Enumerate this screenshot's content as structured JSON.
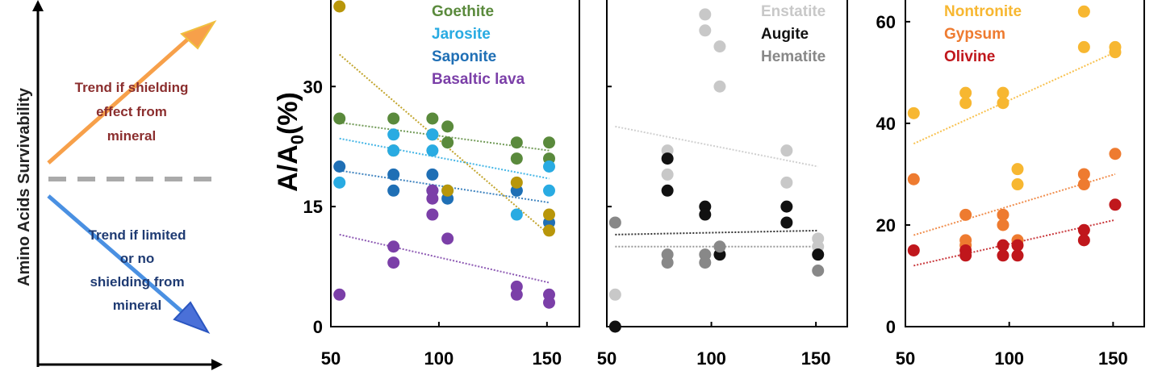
{
  "concept": {
    "y_axis_label": "Amino Acids Survivability",
    "up_label_lines": [
      "Trend if shielding",
      "effect from",
      "mineral"
    ],
    "down_label_lines": [
      "Trend if limited",
      "or no",
      "shielding from",
      "mineral"
    ],
    "colors": {
      "up": "#f7a04a",
      "down": "#4a90e2",
      "baseline": "#aaaaaa",
      "up_text": "#8b2e2e",
      "down_text": "#1f3b73"
    }
  },
  "shared_y_label": {
    "main": "A/A",
    "sub": "0",
    "unit": "(%)"
  },
  "chart_data": [
    {
      "type": "scatter",
      "title": "",
      "xlabel": "",
      "ylabel": "A/A0(%)",
      "xlim": [
        50,
        165
      ],
      "ylim": [
        0,
        40
      ],
      "x_ticks": [
        50,
        100,
        150
      ],
      "y_ticks": [
        0,
        15,
        30
      ],
      "series": [
        {
          "name": "Goethite",
          "color": "#5a8a3c",
          "points": [
            [
              54,
              26
            ],
            [
              79,
              26
            ],
            [
              79,
              22
            ],
            [
              97,
              26
            ],
            [
              97,
              24
            ],
            [
              104,
              25
            ],
            [
              104,
              23
            ],
            [
              136,
              23
            ],
            [
              136,
              21
            ],
            [
              151,
              23
            ],
            [
              151,
              21
            ]
          ],
          "trend": [
            [
              54,
              25.5
            ],
            [
              151,
              22
            ]
          ]
        },
        {
          "name": "Jarosite",
          "color": "#29abe2",
          "points": [
            [
              54,
              18
            ],
            [
              79,
              24
            ],
            [
              79,
              22
            ],
            [
              97,
              24
            ],
            [
              97,
              22
            ],
            [
              104,
              17
            ],
            [
              136,
              17
            ],
            [
              136,
              14
            ],
            [
              151,
              20
            ],
            [
              151,
              17
            ]
          ],
          "trend": [
            [
              54,
              23.5
            ],
            [
              151,
              18.5
            ]
          ]
        },
        {
          "name": "Saponite",
          "color": "#1f6fb5",
          "points": [
            [
              54,
              20
            ],
            [
              79,
              19
            ],
            [
              79,
              17
            ],
            [
              97,
              19
            ],
            [
              97,
              17
            ],
            [
              104,
              16
            ],
            [
              136,
              17
            ],
            [
              151,
              13
            ]
          ],
          "trend": [
            [
              54,
              19.5
            ],
            [
              151,
              15.5
            ]
          ]
        },
        {
          "name": "Basaltic lava",
          "color": "#7b3fa8",
          "points": [
            [
              54,
              4
            ],
            [
              79,
              10
            ],
            [
              79,
              8
            ],
            [
              97,
              17
            ],
            [
              97,
              16
            ],
            [
              97,
              14
            ],
            [
              104,
              11
            ],
            [
              136,
              5
            ],
            [
              136,
              4
            ],
            [
              151,
              4
            ],
            [
              151,
              3
            ]
          ],
          "trend": [
            [
              54,
              11.5
            ],
            [
              151,
              5.5
            ]
          ]
        },
        {
          "name": "",
          "color": "#b8960a",
          "points": [
            [
              54,
              40
            ],
            [
              104,
              17
            ],
            [
              136,
              18
            ],
            [
              151,
              14
            ],
            [
              151,
              12
            ]
          ],
          "trend": [
            [
              54,
              34
            ],
            [
              151,
              11.5
            ]
          ]
        }
      ]
    },
    {
      "type": "scatter",
      "title": "",
      "xlabel": "",
      "ylabel": "",
      "xlim": [
        50,
        165
      ],
      "ylim": [
        0,
        40
      ],
      "x_ticks": [
        50,
        100,
        150
      ],
      "y_ticks": [
        0,
        15,
        30
      ],
      "series": [
        {
          "name": "Enstatite",
          "color": "#c8c8c8",
          "points": [
            [
              54,
              4
            ],
            [
              79,
              22
            ],
            [
              79,
              19
            ],
            [
              97,
              39
            ],
            [
              97,
              37
            ],
            [
              104,
              35
            ],
            [
              104,
              30
            ],
            [
              136,
              22
            ],
            [
              136,
              18
            ],
            [
              151,
              11
            ],
            [
              151,
              10
            ]
          ],
          "trend": [
            [
              54,
              25
            ],
            [
              151,
              20
            ]
          ]
        },
        {
          "name": "Augite",
          "color": "#111111",
          "points": [
            [
              54,
              0
            ],
            [
              79,
              21
            ],
            [
              79,
              17
            ],
            [
              97,
              15
            ],
            [
              97,
              14
            ],
            [
              104,
              9
            ],
            [
              136,
              15
            ],
            [
              136,
              13
            ],
            [
              151,
              9
            ]
          ],
          "trend": [
            [
              54,
              11.5
            ],
            [
              151,
              12
            ]
          ]
        },
        {
          "name": "Hematite",
          "color": "#888888",
          "points": [
            [
              54,
              13
            ],
            [
              79,
              9
            ],
            [
              79,
              8
            ],
            [
              97,
              9
            ],
            [
              97,
              8
            ],
            [
              104,
              10
            ],
            [
              151,
              7
            ]
          ],
          "trend": [
            [
              54,
              10
            ],
            [
              151,
              10
            ]
          ]
        }
      ]
    },
    {
      "type": "scatter",
      "title": "",
      "xlabel": "",
      "ylabel": "",
      "xlim": [
        50,
        165
      ],
      "ylim": [
        0,
        63
      ],
      "x_ticks": [
        50,
        100,
        150
      ],
      "y_ticks": [
        0,
        20,
        40,
        60
      ],
      "series": [
        {
          "name": "Nontronite",
          "color": "#f7b731",
          "points": [
            [
              54,
              42
            ],
            [
              79,
              46
            ],
            [
              79,
              44
            ],
            [
              97,
              46
            ],
            [
              97,
              44
            ],
            [
              104,
              31
            ],
            [
              104,
              28
            ],
            [
              136,
              62
            ],
            [
              136,
              55
            ],
            [
              151,
              55
            ],
            [
              151,
              54
            ]
          ],
          "trend": [
            [
              54,
              36
            ],
            [
              151,
              54
            ]
          ]
        },
        {
          "name": "Gypsum",
          "color": "#ee7b30",
          "points": [
            [
              54,
              29
            ],
            [
              79,
              22
            ],
            [
              79,
              17
            ],
            [
              79,
              16
            ],
            [
              97,
              22
            ],
            [
              97,
              20
            ],
            [
              104,
              17
            ],
            [
              136,
              30
            ],
            [
              136,
              28
            ],
            [
              151,
              34
            ]
          ],
          "trend": [
            [
              54,
              18
            ],
            [
              151,
              30
            ]
          ]
        },
        {
          "name": "Olivine",
          "color": "#c0171c",
          "points": [
            [
              54,
              15
            ],
            [
              79,
              15
            ],
            [
              79,
              14
            ],
            [
              97,
              16
            ],
            [
              97,
              14
            ],
            [
              104,
              16
            ],
            [
              104,
              14
            ],
            [
              136,
              19
            ],
            [
              136,
              17
            ],
            [
              151,
              24
            ]
          ],
          "trend": [
            [
              54,
              12
            ],
            [
              151,
              21
            ]
          ]
        }
      ]
    }
  ]
}
